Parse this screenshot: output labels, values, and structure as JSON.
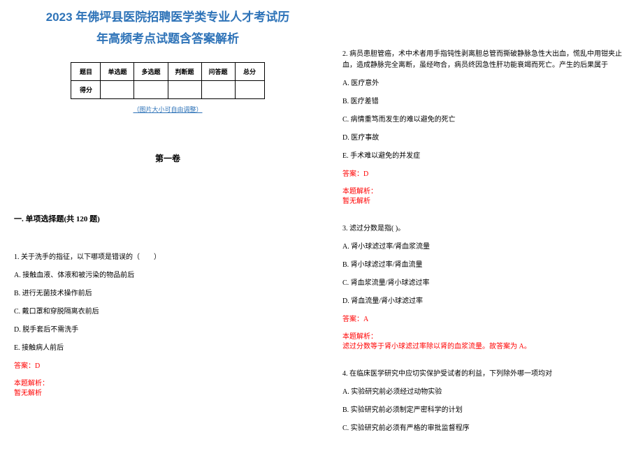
{
  "colors": {
    "title": "#2e73b8",
    "link": "#2e73b8",
    "answer": "#ff0000",
    "text": "#000000",
    "bg": "#ffffff"
  },
  "title_line1": "2023 年佛坪县医院招聘医学类专业人才考试历",
  "title_line2": "年高频考点试题含答案解析",
  "table": {
    "headers": [
      "题目",
      "单选题",
      "多选题",
      "判断题",
      "问答题",
      "总分"
    ],
    "row_label": "得分"
  },
  "adjust_note": "（图片大小可自由调整）",
  "volume": "第一卷",
  "section": "一. 单项选择题(共 120 题)",
  "q1": {
    "stem": "1. 关于洗手的指征，以下哪项是错误的（　　）",
    "opts": {
      "A": "A. 接触血液、体液和被污染的物品前后",
      "B": "B. 进行无菌技术操作前后",
      "C": "C. 戴口罩和穿脱隔离衣前后",
      "D": "D. 脱手套后不需洗手",
      "E": "E. 接触病人前后"
    },
    "answer": "答案：D",
    "explain_label": "本题解析：",
    "explain": "暂无解析"
  },
  "q2": {
    "stem": "2. 病员患胆管癌，术中术者用手指钝性剥离胆总管而撕破静脉急性大出血，慌乱中用钳夹止血，造成静脉完全离断，虽经吻合，病员终因急性肝功能衰竭而死亡。产生的后果属于",
    "opts": {
      "A": "A. 医疗意外",
      "B": "B. 医疗差错",
      "C": "C. 病情重笃而发生的难以避免的死亡",
      "D": "D. 医疗事故",
      "E": "E. 手术难以避免的并发症"
    },
    "answer": "答案：D",
    "explain_label": "本题解析：",
    "explain": "暂无解析"
  },
  "q3": {
    "stem": "3. 滤过分数是指( )。",
    "opts": {
      "A": "A. 肾小球滤过率/肾血浆流量",
      "B": "B. 肾小球滤过率/肾血流量",
      "C": "C. 肾血浆流量/肾小球滤过率",
      "D": "D. 肾血流量/肾小球滤过率"
    },
    "answer": "答案：A",
    "explain_label": "本题解析：",
    "explain": "滤过分数等于肾小球滤过率除以肾的血浆流量。故答案为 A。"
  },
  "q4": {
    "stem": "4. 在临床医学研究中应切实保护受试者的利益，下列除外哪一项均对",
    "opts": {
      "A": "A. 实验研究前必须经过动物实验",
      "B": "B. 实验研究前必须制定严密科学的计划",
      "C": "C. 实验研究前必须有严格的审批监督程序"
    }
  }
}
